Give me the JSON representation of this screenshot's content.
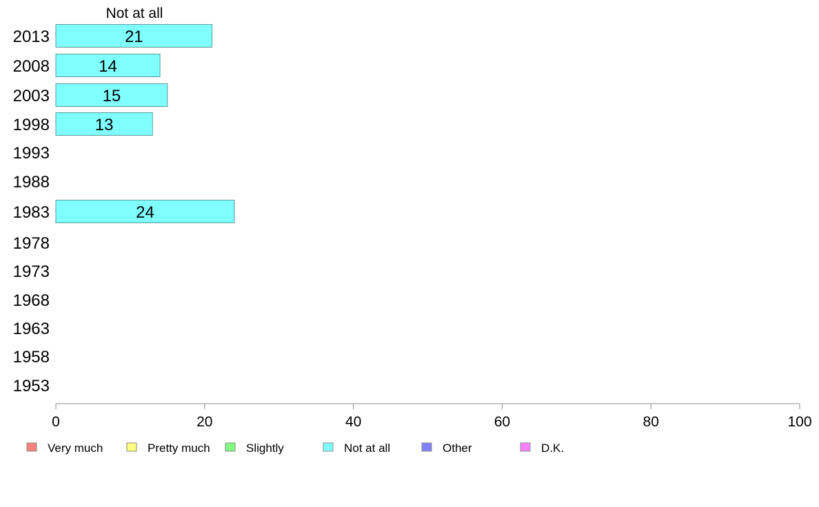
{
  "chart_data": {
    "type": "bar",
    "orientation": "horizontal",
    "stacked": true,
    "header": "Not at all",
    "categories": [
      "2013",
      "2008",
      "2003",
      "1998",
      "1993",
      "1988",
      "1983",
      "1978",
      "1973",
      "1968",
      "1963",
      "1958",
      "1953"
    ],
    "series": [
      {
        "name": "Not at all",
        "color": "#80ffff",
        "values": [
          21,
          14,
          15,
          13,
          null,
          null,
          24,
          null,
          null,
          null,
          null,
          null,
          null
        ]
      }
    ],
    "xlim": [
      0,
      100
    ],
    "xticks": [
      0,
      20,
      40,
      60,
      80,
      100
    ],
    "grid": false,
    "legend": {
      "placement": "bottom",
      "items": [
        {
          "label": "Very much",
          "color": "#ff8080"
        },
        {
          "label": "Pretty much",
          "color": "#ffff80"
        },
        {
          "label": "Slightly",
          "color": "#80ff80"
        },
        {
          "label": "Not at all",
          "color": "#80ffff"
        },
        {
          "label": "Other",
          "color": "#8080ff"
        },
        {
          "label": "D.K.",
          "color": "#ff80ff"
        }
      ]
    }
  }
}
